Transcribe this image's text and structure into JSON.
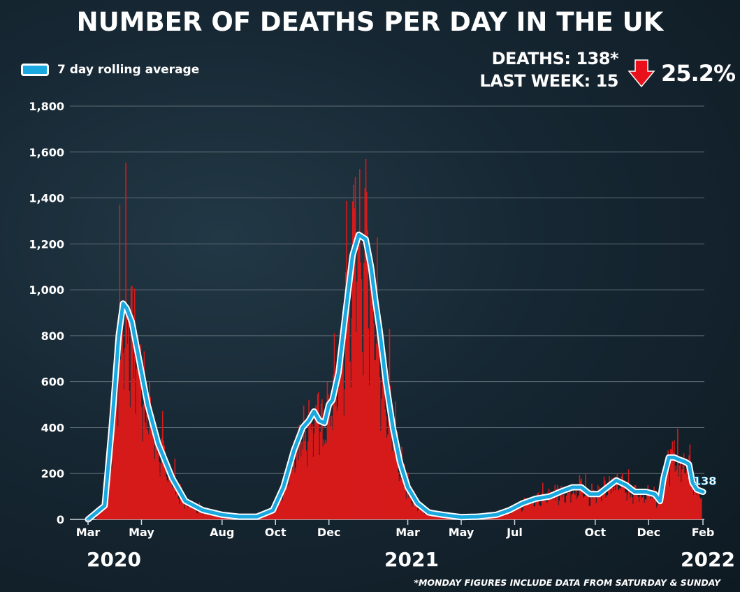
{
  "title": "NUMBER OF DEATHS PER DAY IN THE UK",
  "legend": {
    "label": "7 day rolling average"
  },
  "stats": {
    "deaths": "DEATHS: 138*",
    "last_week": "LAST WEEK: 15",
    "change": "25.2%",
    "direction_icon": "red-down-arrow-icon"
  },
  "footnote": "*MONDAY FIGURES INCLUDE DATA FROM SATURDAY & SUNDAY",
  "colors": {
    "bars": "#d61a1a",
    "line": "#1aa8e0",
    "line_outline": "#ffffff",
    "arrow": "#e8101a"
  },
  "chart_data": {
    "type": "bar",
    "title": "NUMBER OF DEATHS PER DAY IN THE UK",
    "ylabel": "",
    "xlabel": "",
    "ylim": [
      0,
      1800
    ],
    "yticks": [
      0,
      200,
      400,
      600,
      800,
      1000,
      1200,
      1400,
      1600,
      1800
    ],
    "ytick_labels": [
      "0",
      "200",
      "400",
      "600",
      "800",
      "1,000",
      "1,200",
      "1,400",
      "1,600",
      "1,800"
    ],
    "month_ticks": [
      {
        "label": "Mar",
        "date": "2020-03-01"
      },
      {
        "label": "May",
        "date": "2020-05-01"
      },
      {
        "label": "Aug",
        "date": "2020-08-01"
      },
      {
        "label": "Oct",
        "date": "2020-10-01"
      },
      {
        "label": "Dec",
        "date": "2020-12-01"
      },
      {
        "label": "Mar",
        "date": "2021-03-01"
      },
      {
        "label": "May",
        "date": "2021-05-01"
      },
      {
        "label": "Jul",
        "date": "2021-07-01"
      },
      {
        "label": "Oct",
        "date": "2021-10-01"
      },
      {
        "label": "Dec",
        "date": "2021-12-01"
      },
      {
        "label": "Feb",
        "date": "2022-02-01"
      }
    ],
    "year_labels": [
      "2020",
      "2021",
      "2022"
    ],
    "x_start": "2020-03-01",
    "x_end": "2022-02-01",
    "grid": true,
    "legend_position": "top-left",
    "series": [
      {
        "name": "7 day rolling average",
        "x": [
          "2020-03-01",
          "2020-03-20",
          "2020-03-28",
          "2020-04-05",
          "2020-04-10",
          "2020-04-14",
          "2020-04-20",
          "2020-04-28",
          "2020-05-08",
          "2020-05-20",
          "2020-06-05",
          "2020-06-20",
          "2020-07-10",
          "2020-08-01",
          "2020-08-20",
          "2020-09-10",
          "2020-09-28",
          "2020-10-10",
          "2020-10-22",
          "2020-11-01",
          "2020-11-08",
          "2020-11-14",
          "2020-11-20",
          "2020-11-26",
          "2020-12-01",
          "2020-12-05",
          "2020-12-12",
          "2020-12-20",
          "2020-12-28",
          "2021-01-04",
          "2021-01-12",
          "2021-01-18",
          "2021-01-23",
          "2021-01-28",
          "2021-02-04",
          "2021-02-12",
          "2021-02-20",
          "2021-03-01",
          "2021-03-12",
          "2021-03-25",
          "2021-04-10",
          "2021-05-01",
          "2021-05-20",
          "2021-06-10",
          "2021-06-25",
          "2021-07-10",
          "2021-07-25",
          "2021-08-10",
          "2021-08-22",
          "2021-09-05",
          "2021-09-15",
          "2021-09-25",
          "2021-10-05",
          "2021-10-15",
          "2021-10-25",
          "2021-11-05",
          "2021-11-15",
          "2021-11-28",
          "2021-12-08",
          "2021-12-14",
          "2021-12-18",
          "2021-12-24",
          "2021-12-30",
          "2022-01-05",
          "2022-01-12",
          "2022-01-16",
          "2022-01-20",
          "2022-01-25",
          "2022-02-01"
        ],
        "values": [
          0,
          60,
          400,
          800,
          940,
          920,
          860,
          700,
          500,
          330,
          180,
          80,
          40,
          20,
          12,
          12,
          40,
          140,
          300,
          400,
          430,
          470,
          430,
          420,
          500,
          520,
          640,
          900,
          1150,
          1240,
          1220,
          1100,
          950,
          820,
          600,
          400,
          250,
          140,
          70,
          30,
          20,
          10,
          12,
          20,
          40,
          70,
          90,
          100,
          120,
          140,
          140,
          110,
          110,
          140,
          170,
          150,
          120,
          120,
          110,
          80,
          180,
          270,
          270,
          260,
          250,
          240,
          160,
          130,
          120
        ]
      }
    ],
    "annotations": [
      {
        "text": "138"
      }
    ]
  }
}
